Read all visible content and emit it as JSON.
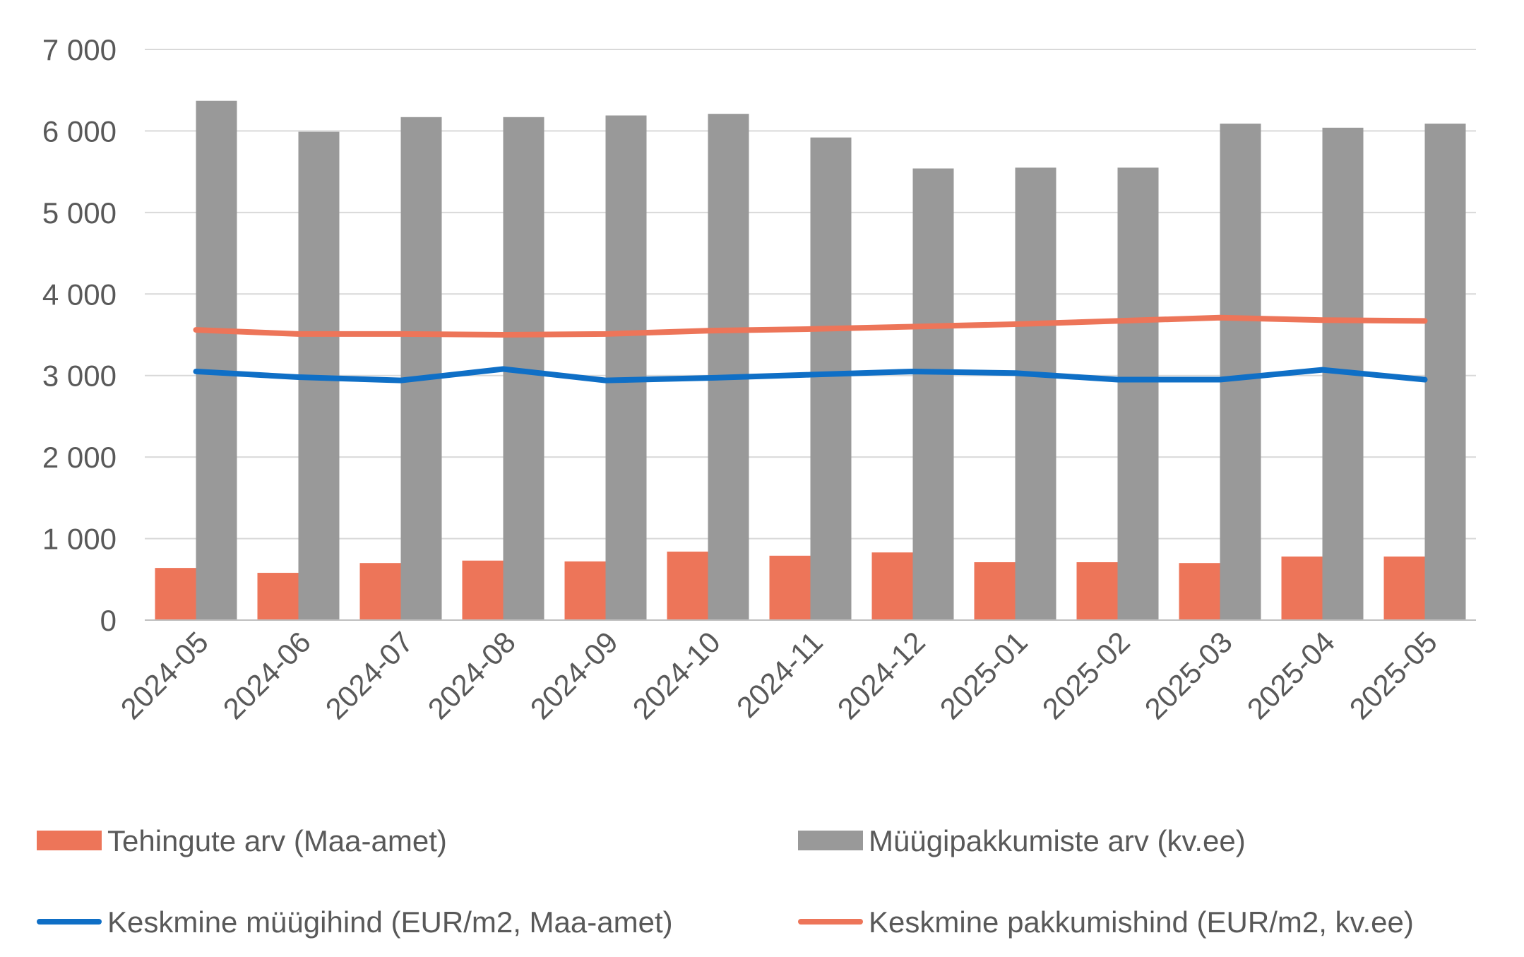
{
  "chart_data": {
    "type": "bar",
    "categories": [
      "2024-05",
      "2024-06",
      "2024-07",
      "2024-08",
      "2024-09",
      "2024-10",
      "2024-11",
      "2024-12",
      "2025-01",
      "2025-02",
      "2025-03",
      "2025-04",
      "2025-05"
    ],
    "ylim": [
      0,
      7000
    ],
    "yticks": [
      0,
      1000,
      2000,
      3000,
      4000,
      5000,
      6000,
      7000
    ],
    "ytick_labels": [
      "0",
      "1 000",
      "2 000",
      "3 000",
      "4 000",
      "5 000",
      "6 000",
      "7 000"
    ],
    "grid": true,
    "legend_position": "bottom",
    "bar_series": [
      {
        "name": "Tehingute arv (Maa-amet)",
        "color": "#ED7559",
        "values": [
          640,
          580,
          700,
          730,
          720,
          840,
          790,
          830,
          710,
          710,
          700,
          780,
          780
        ]
      },
      {
        "name": "Müügipakkumiste arv (kv.ee)",
        "color": "#999999",
        "values": [
          6370,
          5990,
          6170,
          6170,
          6190,
          6210,
          5920,
          5540,
          5550,
          5550,
          6090,
          6040,
          6090
        ]
      }
    ],
    "line_series": [
      {
        "name": "Keskmine müügihind (EUR/m2, Maa-amet)",
        "color": "#0F6FC6",
        "values": [
          3050,
          2980,
          2940,
          3080,
          2940,
          2970,
          3010,
          3050,
          3030,
          2950,
          2950,
          3070,
          2950
        ]
      },
      {
        "name": "Keskmine pakkumishind (EUR/m2, kv.ee)",
        "color": "#ED7559",
        "values": [
          3560,
          3510,
          3510,
          3500,
          3510,
          3550,
          3570,
          3600,
          3630,
          3670,
          3710,
          3680,
          3670
        ]
      }
    ]
  },
  "legend": {
    "items": [
      {
        "label": "Tehingute arv (Maa-amet)",
        "kind": "bar",
        "color": "#ED7559"
      },
      {
        "label": "Müügipakkumiste arv (kv.ee)",
        "kind": "bar",
        "color": "#999999"
      },
      {
        "label": "Keskmine müügihind (EUR/m2, Maa-amet)",
        "kind": "line",
        "color": "#0F6FC6"
      },
      {
        "label": "Keskmine pakkumishind (EUR/m2, kv.ee)",
        "kind": "line",
        "color": "#ED7559"
      }
    ]
  },
  "colors": {
    "gridline": "#D9D9D9",
    "axis": "#BFBFBF",
    "text": "#595959"
  }
}
